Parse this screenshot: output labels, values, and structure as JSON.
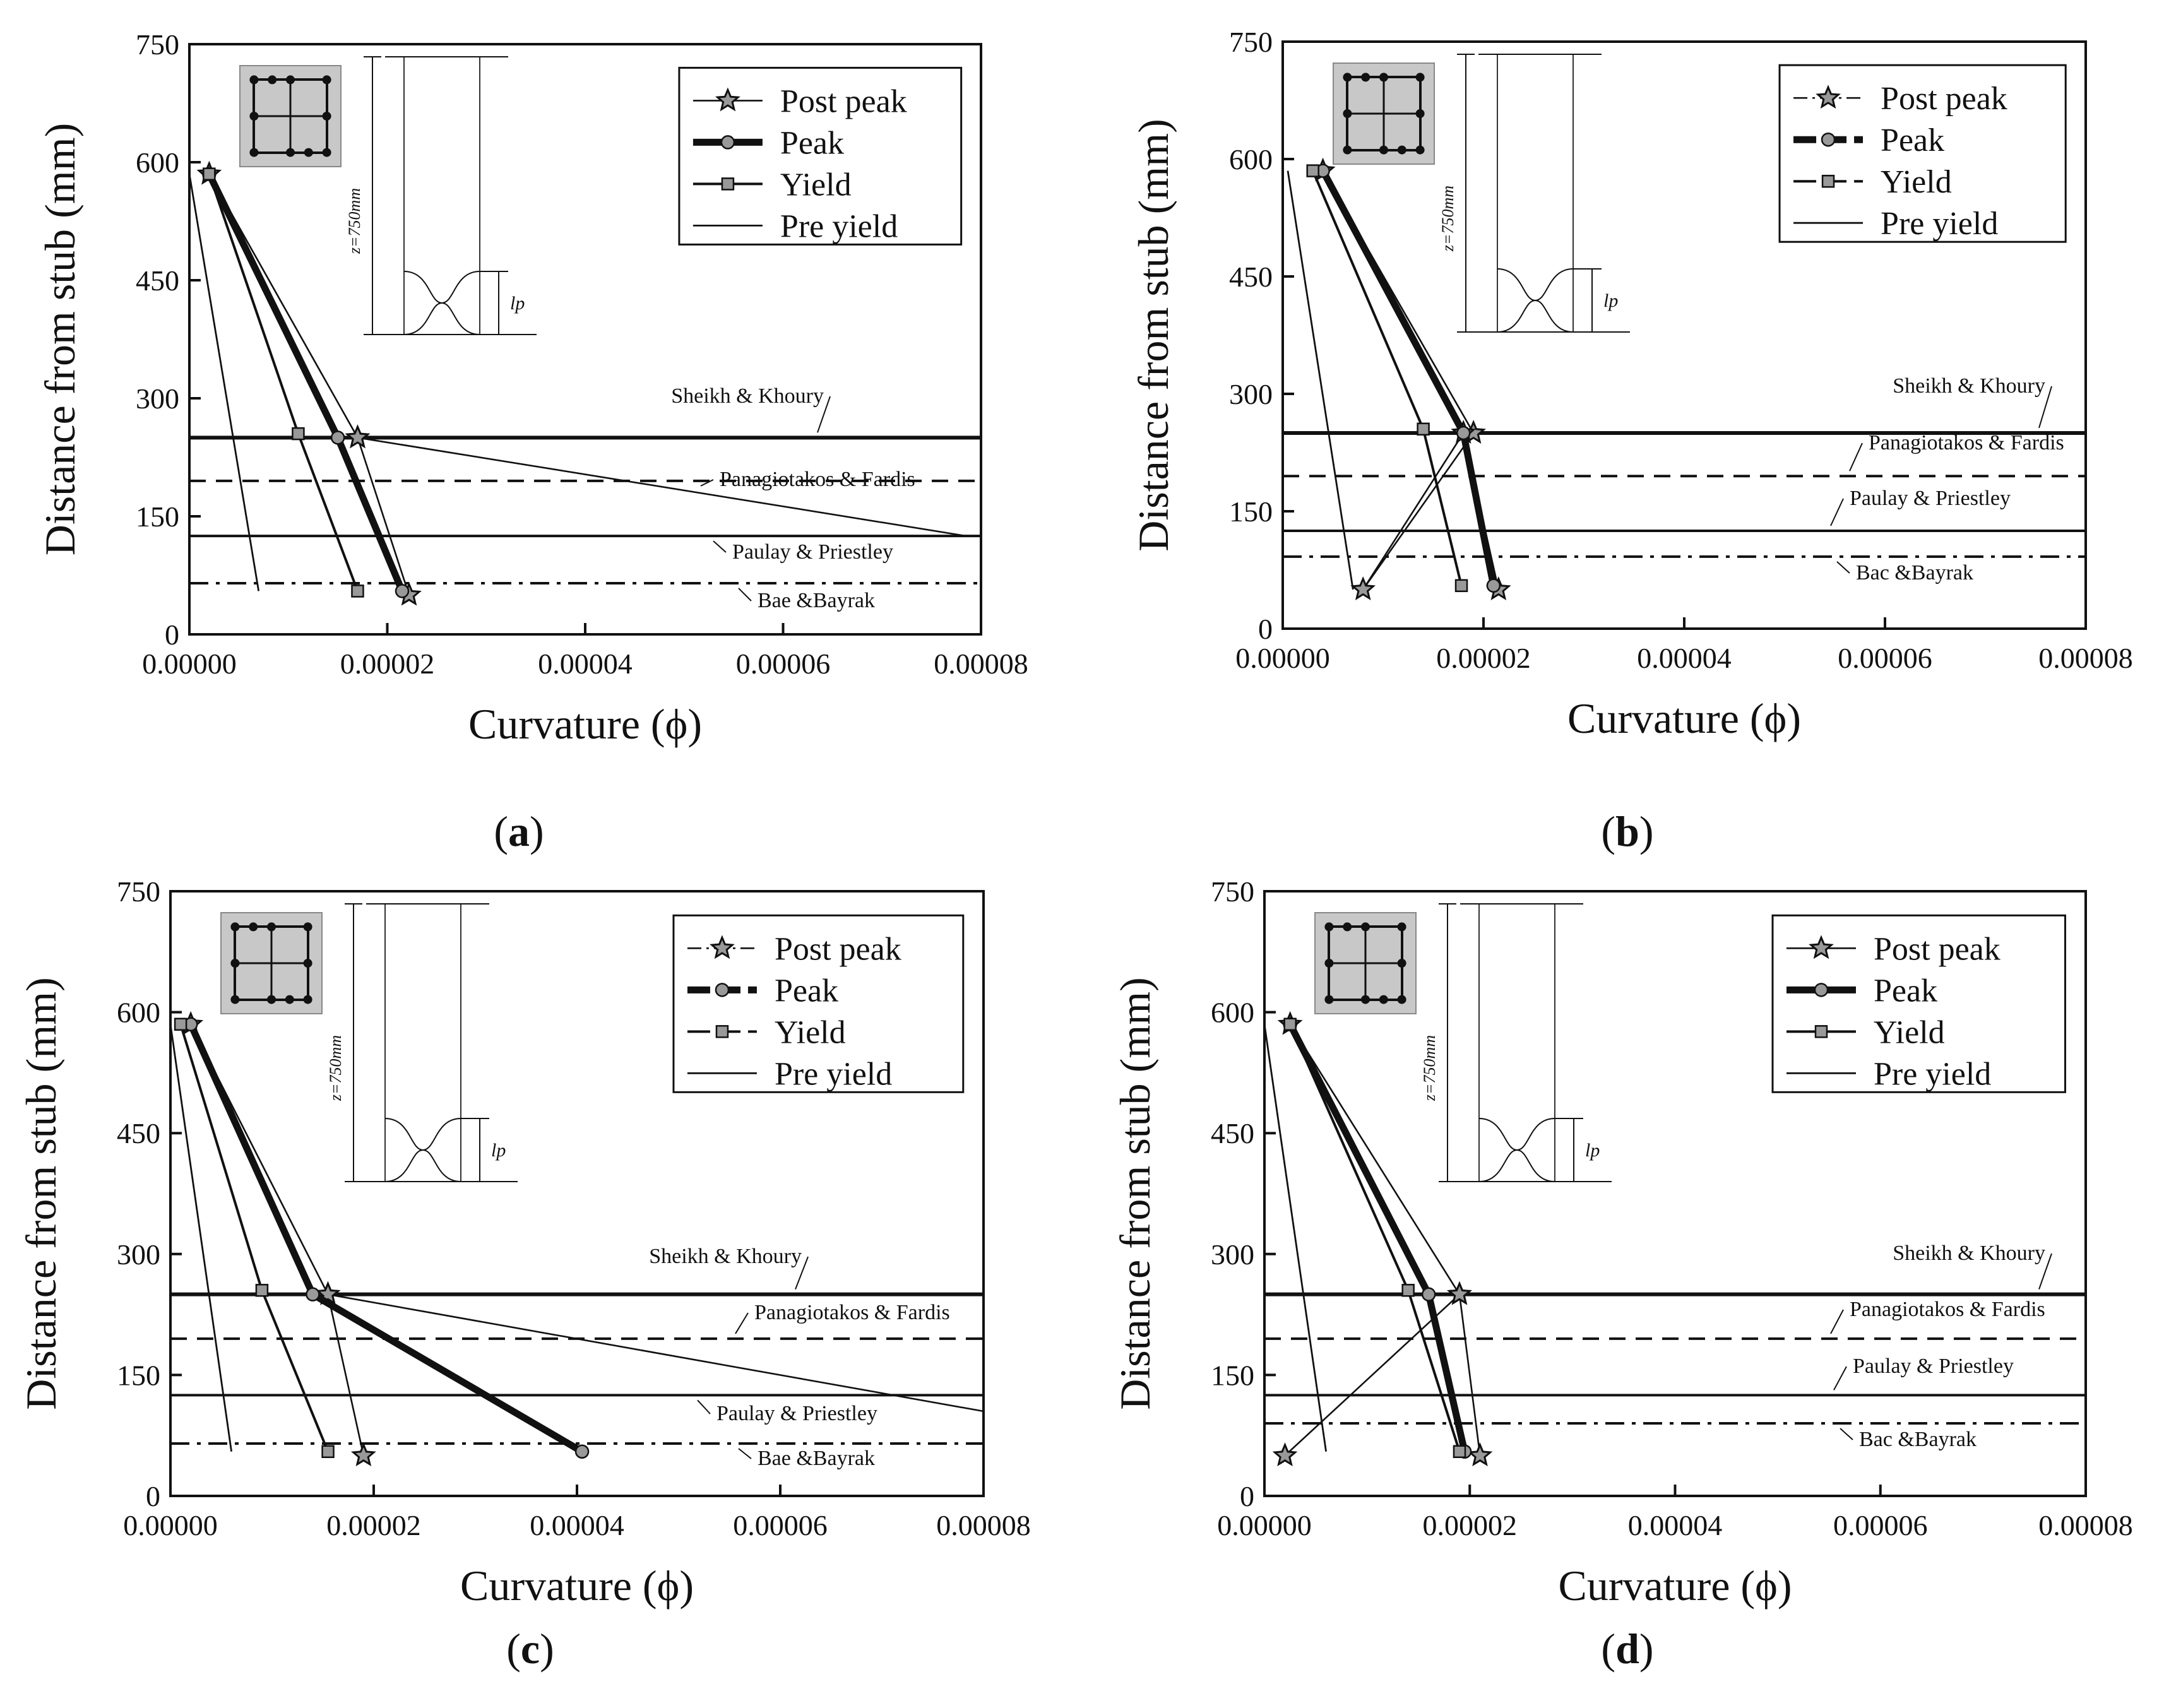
{
  "figure": {
    "panels": [
      "a",
      "b",
      "c",
      "d"
    ]
  },
  "chart_data": [
    {
      "panel": "a",
      "type": "line",
      "xlabel": "Curvature (ϕ)",
      "ylabel": "Distance from stub (mm)",
      "xlim": [
        0,
        8e-05
      ],
      "ylim": [
        0,
        750
      ],
      "xticks": [
        "0.00000",
        "0.00002",
        "0.00004",
        "0.00006",
        "0.00008"
      ],
      "yticks": [
        "0",
        "150",
        "300",
        "450",
        "600",
        "750"
      ],
      "legend": [
        "Post peak",
        "Peak",
        "Yield",
        "Pre yield"
      ],
      "legend_style": "solid",
      "series": [
        {
          "name": "Post peak",
          "x": [
            2e-06,
            1.7e-05,
            7.85e-05,
            1.7e-05,
            2.22e-05
          ],
          "y": [
            585,
            250,
            125,
            250,
            50
          ]
        },
        {
          "name": "Peak",
          "x": [
            2e-06,
            1.5e-05,
            2.15e-05
          ],
          "y": [
            585,
            250,
            55
          ]
        },
        {
          "name": "Yield",
          "x": [
            2e-06,
            1.1e-05,
            1.7e-05
          ],
          "y": [
            585,
            255,
            55
          ]
        },
        {
          "name": "Pre yield",
          "x": [
            0.0,
            7e-06
          ],
          "y": [
            585,
            55
          ]
        }
      ],
      "hlines": [
        {
          "name": "Sheikh & Khoury",
          "y": 250,
          "style": "solid"
        },
        {
          "name": "Panagiotakos & Fardis",
          "y": 195,
          "style": "dash"
        },
        {
          "name": "Paulay & Priestley",
          "y": 125,
          "style": "solid"
        },
        {
          "name": "Bae &Bayrak",
          "y": 65,
          "style": "dashdot"
        }
      ],
      "inset": {
        "height_label": "z=750mm",
        "hinge_label": "lp"
      }
    },
    {
      "panel": "b",
      "type": "line",
      "xlabel": "Curvature (ϕ)",
      "ylabel": "Distance from stub (mm)",
      "xlim": [
        0,
        8e-05
      ],
      "ylim": [
        0,
        750
      ],
      "xticks": [
        "0.00000",
        "0.00002",
        "0.00004",
        "0.00006",
        "0.00008"
      ],
      "yticks": [
        "0",
        "150",
        "300",
        "450",
        "600",
        "750"
      ],
      "legend": [
        "Post peak",
        "Peak",
        "Yield",
        "Pre yield"
      ],
      "legend_style": "dashed",
      "series": [
        {
          "name": "Post peak",
          "x": [
            4e-06,
            1.9e-05,
            8e-06,
            1.8e-05,
            2.15e-05
          ],
          "y": [
            585,
            250,
            50,
            250,
            50
          ]
        },
        {
          "name": "Peak",
          "x": [
            4e-06,
            1.8e-05,
            2.1e-05
          ],
          "y": [
            585,
            250,
            55
          ]
        },
        {
          "name": "Yield",
          "x": [
            3e-06,
            1.4e-05,
            1.78e-05
          ],
          "y": [
            585,
            255,
            55
          ]
        },
        {
          "name": "Pre yield",
          "x": [
            5e-07,
            7e-06
          ],
          "y": [
            585,
            50
          ]
        }
      ],
      "hlines": [
        {
          "name": "Sheikh & Khoury",
          "y": 250,
          "style": "solid"
        },
        {
          "name": "Panagiotakos & Fardis",
          "y": 195,
          "style": "dash"
        },
        {
          "name": "Paulay & Priestley",
          "y": 125,
          "style": "solid"
        },
        {
          "name": "Bac &Bayrak",
          "y": 92,
          "style": "dashdot"
        }
      ],
      "inset": {
        "height_label": "z=750mm",
        "hinge_label": "lp"
      }
    },
    {
      "panel": "c",
      "type": "line",
      "xlabel": "Curvature (ϕ)",
      "ylabel": "Distance from stub (mm)",
      "xlim": [
        0,
        8e-05
      ],
      "ylim": [
        0,
        750
      ],
      "xticks": [
        "0.00000",
        "0.00002",
        "0.00004",
        "0.00006",
        "0.00008"
      ],
      "yticks": [
        "0",
        "150",
        "300",
        "450",
        "600",
        "750"
      ],
      "legend": [
        "Post peak",
        "Peak",
        "Yield",
        "Pre yield"
      ],
      "legend_style": "dashed",
      "series": [
        {
          "name": "Post peak",
          "x": [
            2e-06,
            1.55e-05,
            8e-05,
            1.55e-05,
            1.9e-05
          ],
          "y": [
            585,
            250,
            105,
            250,
            50
          ]
        },
        {
          "name": "Peak",
          "x": [
            2e-06,
            1.4e-05,
            4.05e-05
          ],
          "y": [
            585,
            250,
            55
          ]
        },
        {
          "name": "Yield",
          "x": [
            1e-06,
            9e-06,
            1.55e-05
          ],
          "y": [
            585,
            255,
            55
          ]
        },
        {
          "name": "Pre yield",
          "x": [
            0.0,
            6e-06
          ],
          "y": [
            585,
            55
          ]
        }
      ],
      "hlines": [
        {
          "name": "Sheikh & Khoury",
          "y": 250,
          "style": "solid"
        },
        {
          "name": "Panagiotakos & Fardis",
          "y": 195,
          "style": "dash"
        },
        {
          "name": "Paulay & Priestley",
          "y": 125,
          "style": "solid"
        },
        {
          "name": "Bae &Bayrak",
          "y": 65,
          "style": "dashdot"
        }
      ],
      "inset": {
        "height_label": "z=750mm",
        "hinge_label": "lp"
      }
    },
    {
      "panel": "d",
      "type": "line",
      "xlabel": "Curvature (ϕ)",
      "ylabel": "Distance from stub (mm)",
      "xlim": [
        0,
        8e-05
      ],
      "ylim": [
        0,
        750
      ],
      "xticks": [
        "0.00000",
        "0.00002",
        "0.00004",
        "0.00006",
        "0.00008"
      ],
      "yticks": [
        "0",
        "150",
        "300",
        "450",
        "600",
        "750"
      ],
      "legend": [
        "Post peak",
        "Peak",
        "Yield",
        "Pre yield"
      ],
      "legend_style": "solid",
      "series": [
        {
          "name": "Post peak",
          "x": [
            2.5e-06,
            1.9e-05,
            2e-06,
            1.9e-05,
            2.1e-05
          ],
          "y": [
            585,
            250,
            50,
            250,
            50
          ]
        },
        {
          "name": "Peak",
          "x": [
            2.5e-06,
            1.6e-05,
            1.95e-05
          ],
          "y": [
            585,
            250,
            55
          ]
        },
        {
          "name": "Yield",
          "x": [
            2.5e-06,
            1.4e-05,
            1.9e-05
          ],
          "y": [
            585,
            255,
            55
          ]
        },
        {
          "name": "Pre yield",
          "x": [
            0.0,
            6e-06
          ],
          "y": [
            585,
            55
          ]
        }
      ],
      "hlines": [
        {
          "name": "Sheikh & Khoury",
          "y": 250,
          "style": "solid"
        },
        {
          "name": "Panagiotakos & Fardis",
          "y": 195,
          "style": "dash"
        },
        {
          "name": "Paulay & Priestley",
          "y": 125,
          "style": "solid"
        },
        {
          "name": "Bac &Bayrak",
          "y": 90,
          "style": "dashdot"
        }
      ],
      "inset": {
        "height_label": "z=750mm",
        "hinge_label": "lp"
      }
    }
  ]
}
